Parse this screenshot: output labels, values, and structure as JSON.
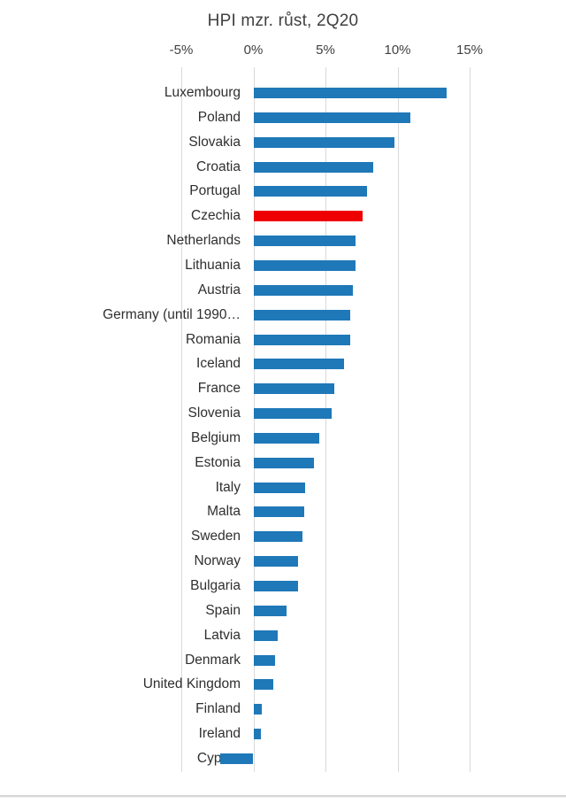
{
  "chart_data": {
    "type": "bar",
    "orientation": "horizontal",
    "title": "HPI mzr. růst, 2Q20",
    "xlabel": "",
    "ylabel": "",
    "xlim": [
      -5,
      15
    ],
    "grid": true,
    "axis_ticks": [
      {
        "label": "-5%",
        "value": -5
      },
      {
        "label": "0%",
        "value": 0
      },
      {
        "label": "5%",
        "value": 5
      },
      {
        "label": "10%",
        "value": 10
      },
      {
        "label": "15%",
        "value": 15
      }
    ],
    "categories": [
      "Luxembourg",
      "Poland",
      "Slovakia",
      "Croatia",
      "Portugal",
      "Czechia",
      "Netherlands",
      "Lithuania",
      "Austria",
      "Germany (until 1990…",
      "Romania",
      "Iceland",
      "France",
      "Slovenia",
      "Belgium",
      "Estonia",
      "Italy",
      "Malta",
      "Sweden",
      "Norway",
      "Bulgaria",
      "Spain",
      "Latvia",
      "Denmark",
      "United Kingdom",
      "Finland",
      "Ireland",
      "Cyprus"
    ],
    "values": [
      13.4,
      10.9,
      9.8,
      8.3,
      7.9,
      7.6,
      7.1,
      7.1,
      6.9,
      6.7,
      6.7,
      6.3,
      5.6,
      5.4,
      4.6,
      4.2,
      3.6,
      3.5,
      3.4,
      3.1,
      3.1,
      2.3,
      1.7,
      1.5,
      1.4,
      0.6,
      0.5,
      -2.3
    ],
    "bar_color": "#1f78b8",
    "highlight": {
      "category": "Czechia",
      "color": "#ee0000"
    },
    "gridline_color": "#d9d9d9",
    "legend": "none"
  }
}
